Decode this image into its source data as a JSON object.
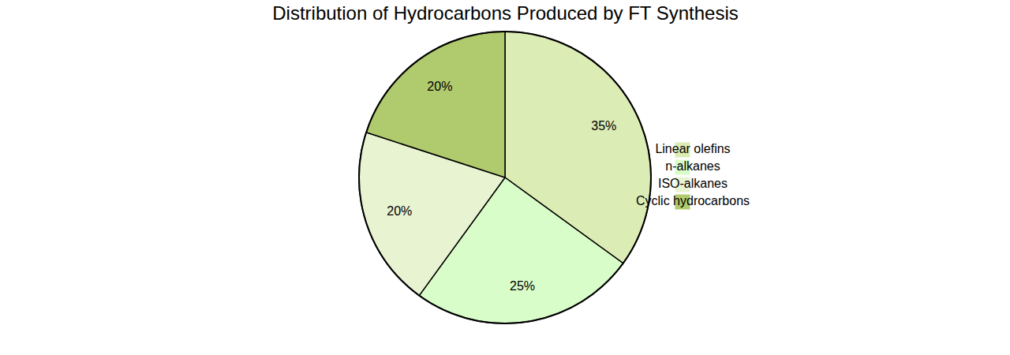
{
  "chart_data": {
    "type": "pie",
    "title": "Distribution of Hydrocarbons Produced by FT Synthesis",
    "categories": [
      "Linear olefins",
      "n-alkanes",
      "ISO-alkanes",
      "Cyclic hydrocarbons"
    ],
    "values": [
      35,
      25,
      20,
      20
    ],
    "value_labels": [
      "35%",
      "25%",
      "20%",
      "20%"
    ],
    "colors": [
      "#dcecb5",
      "#d9fdc9",
      "#e8f3d2",
      "#b0ca6e"
    ],
    "data_labels": true,
    "legend": "right"
  }
}
